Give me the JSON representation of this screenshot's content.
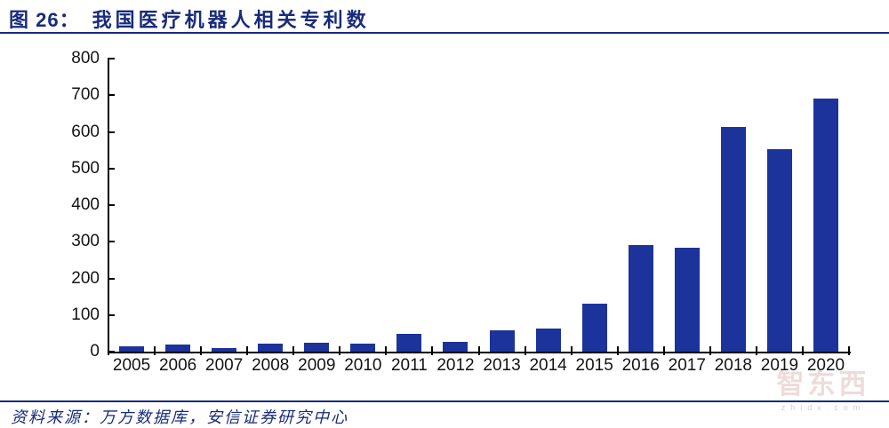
{
  "header": {
    "figure_label": "图 26：",
    "title": "我国医疗机器人相关专利数"
  },
  "chart_data": {
    "type": "bar",
    "title": "我国医疗机器人相关专利数",
    "categories": [
      "2005",
      "2006",
      "2007",
      "2008",
      "2009",
      "2010",
      "2011",
      "2012",
      "2013",
      "2014",
      "2015",
      "2016",
      "2017",
      "2018",
      "2019",
      "2020"
    ],
    "values": [
      15,
      20,
      10,
      22,
      25,
      23,
      48,
      27,
      57,
      64,
      130,
      292,
      284,
      613,
      553,
      691
    ],
    "xlabel": "",
    "ylabel": "",
    "ylim": [
      0,
      800
    ],
    "yticks": [
      0,
      100,
      200,
      300,
      400,
      500,
      600,
      700,
      800
    ],
    "grid": false,
    "legend": null,
    "bar_color": "#1C339B"
  },
  "footer": {
    "source": "资料来源：万方数据库，安信证券研究中心"
  },
  "watermark": {
    "text": "智东西",
    "subtext": "zhidx.com"
  },
  "colors": {
    "navy": "#182B7C",
    "bar_blue": "#1C339B",
    "axis_black": "#000000",
    "watermark_pink": "#EDDCDA"
  }
}
